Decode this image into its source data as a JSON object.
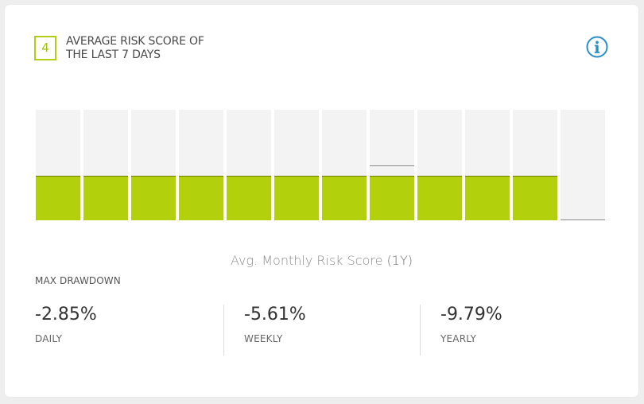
{
  "card": {
    "score": "4",
    "title": "AVERAGE RISK SCORE OF THE LAST 7 DAYS",
    "info_icon": "info-icon"
  },
  "colors": {
    "accent": "#b2d10c",
    "badge": "#b2cd14",
    "info": "#2a8fc7"
  },
  "chart_data": {
    "type": "bar",
    "categories": [
      "",
      "",
      "",
      "",
      "",
      "",
      "",
      "",
      "",
      "",
      "",
      ""
    ],
    "values": [
      4,
      4,
      4,
      4,
      4,
      4,
      4,
      4,
      4,
      4,
      4,
      0
    ],
    "markers": [
      null,
      null,
      null,
      null,
      null,
      null,
      null,
      5,
      null,
      null,
      null,
      null
    ],
    "ylim": [
      0,
      10
    ],
    "title": "Avg. Monthly Risk Score",
    "period": "(1Y)"
  },
  "drawdown": {
    "label": "MAX DRAWDOWN",
    "stats": [
      {
        "value": "-2.85%",
        "label": "DAILY"
      },
      {
        "value": "-5.61%",
        "label": "WEEKLY"
      },
      {
        "value": "-9.79%",
        "label": "YEARLY"
      }
    ]
  }
}
